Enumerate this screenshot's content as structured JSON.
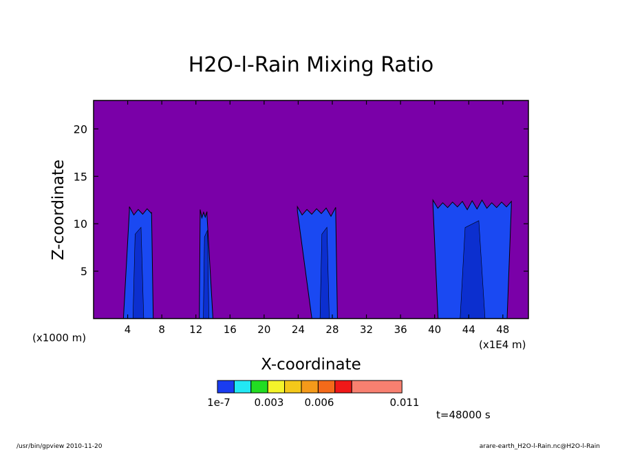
{
  "chart_data": {
    "type": "heatmap",
    "title": "H2O-l-Rain Mixing Ratio",
    "xlabel": "X-coordinate",
    "ylabel": "Z-coordinate",
    "x_unit_left": "(x1000 m)",
    "x_unit_right": "(x1E4 m)",
    "xlim": [
      0,
      51
    ],
    "ylim": [
      0,
      23
    ],
    "x_ticks": [
      4,
      8,
      12,
      16,
      20,
      24,
      28,
      32,
      36,
      40,
      44,
      48
    ],
    "y_ticks": [
      5,
      10,
      15,
      20
    ],
    "background_color": "#7a00a8",
    "fill_color": "#1a49f2",
    "inner_fill_color": "#0c2fcf",
    "plumes": [
      {
        "x_base": [
          3.5,
          7.0
        ],
        "x_top": [
          4.2,
          6.8
        ],
        "top": 11.8
      },
      {
        "x_base": [
          12.4,
          14.0
        ],
        "x_top": [
          12.5,
          13.3
        ],
        "top": 11.5
      },
      {
        "x_base": [
          25.6,
          28.6
        ],
        "x_top": [
          23.9,
          28.4
        ],
        "top": 11.8
      },
      {
        "x_base": [
          40.4,
          48.5
        ],
        "x_top": [
          39.8,
          49.0
        ],
        "top": 12.5
      }
    ],
    "colorbar": {
      "colors": [
        "#1a3cf0",
        "#22e8f4",
        "#22dd22",
        "#f4f42a",
        "#f4c81a",
        "#f49a1a",
        "#f46a1a",
        "#f01818",
        "#f88070"
      ],
      "labels": [
        "1e-7",
        "0.003",
        "0.006",
        "0.011"
      ]
    },
    "time_label": "t=48000 s"
  },
  "footer": {
    "left": "/usr/bin/gpview   2010-11-20",
    "right": "arare-earth_H2O-l-Rain.nc@H2O-l-Rain"
  }
}
